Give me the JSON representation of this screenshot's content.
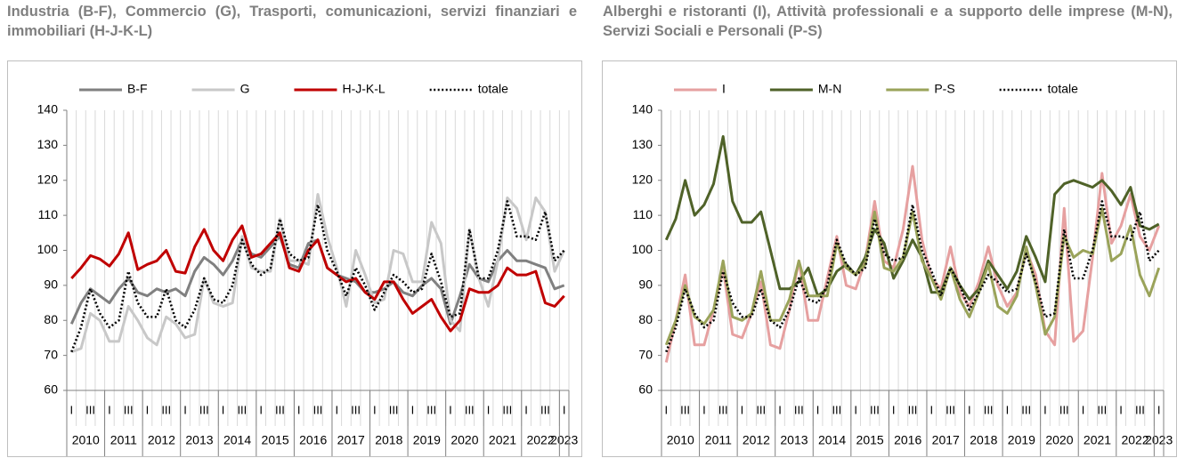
{
  "chart_data": [
    {
      "type": "line",
      "title": "Industria (B-F), Commercio (G), Trasporti, comunicazioni, servizi finanziari e immobiliari (H-J-K-L)",
      "categories": [
        "I",
        null,
        "III",
        null,
        "I",
        null,
        "III",
        null,
        "I",
        null,
        "III",
        null,
        "I",
        null,
        "III",
        null,
        "I",
        null,
        "III",
        null,
        "I",
        null,
        "III",
        null,
        "I",
        null,
        "III",
        null,
        "I",
        null,
        "III",
        null,
        "I",
        null,
        "III",
        null,
        "I",
        null,
        "III",
        null,
        "I",
        null,
        "III",
        null,
        "I",
        null,
        "III",
        null,
        "I",
        null,
        "III",
        null,
        "I"
      ],
      "years": [
        "2010",
        "2011",
        "2012",
        "2013",
        "2014",
        "2015",
        "2016",
        "2017",
        "2018",
        "2019",
        "2020",
        "2021",
        "2022",
        "2023"
      ],
      "ylim": [
        60,
        140
      ],
      "yticks": [
        60,
        70,
        80,
        90,
        100,
        110,
        120,
        130,
        140
      ],
      "grid": "x",
      "legend": "top",
      "series": [
        {
          "name": "B-F",
          "color": "#808080",
          "style": "solid",
          "values": [
            79,
            85,
            89,
            87,
            85,
            89,
            92,
            88,
            87,
            89,
            88,
            89,
            87,
            94,
            98,
            96,
            93,
            97,
            103,
            99,
            98,
            101,
            104,
            96,
            95,
            102,
            103,
            95,
            93,
            92,
            91,
            88,
            88,
            89,
            91,
            88,
            87,
            90,
            92,
            89,
            79,
            87,
            96,
            92,
            91,
            97,
            100,
            97,
            97,
            96,
            95,
            89,
            90
          ]
        },
        {
          "name": "G",
          "color": "#c8c8c8",
          "style": "solid",
          "values": [
            71,
            72,
            82,
            80,
            74,
            74,
            84,
            80,
            75,
            73,
            81,
            79,
            75,
            76,
            92,
            85,
            84,
            85,
            104,
            95,
            94,
            94,
            109,
            97,
            97,
            96,
            116,
            104,
            95,
            84,
            100,
            93,
            85,
            86,
            100,
            99,
            91,
            91,
            108,
            102,
            80,
            77,
            106,
            92,
            84,
            97,
            115,
            112,
            103,
            115,
            111,
            94,
            100
          ]
        },
        {
          "name": "H-J-K-L",
          "color": "#c00000",
          "style": "solid",
          "values": [
            92,
            95,
            98.5,
            97.5,
            95.5,
            99,
            105,
            94.5,
            96,
            97,
            100,
            94,
            93.5,
            101,
            106,
            100,
            97,
            103,
            107,
            98,
            99,
            102,
            105,
            95,
            94,
            100,
            103,
            95,
            93,
            91,
            92,
            88,
            86,
            91,
            91,
            86,
            82,
            84,
            86,
            81,
            77,
            80,
            89,
            88,
            88,
            90,
            95,
            93,
            93,
            94,
            85,
            84,
            87
          ]
        },
        {
          "name": "totale",
          "color": "#000000",
          "style": "dotted",
          "values": [
            71,
            78,
            89,
            82,
            78,
            80,
            94,
            85,
            81,
            81,
            89,
            80,
            78,
            83,
            92,
            86,
            85,
            90,
            103,
            96,
            93,
            95,
            109,
            99,
            97,
            98,
            113,
            100,
            94,
            87,
            95,
            90,
            83,
            88,
            93,
            91,
            88,
            89,
            99,
            91,
            81,
            82,
            106,
            92,
            92,
            100,
            114,
            104,
            104,
            103,
            111,
            97,
            100
          ]
        }
      ]
    },
    {
      "type": "line",
      "title": "Alberghi e ristoranti (I), Attività professionali e a supporto delle imprese (M-N), Servizi Sociali e Personali (P-S)",
      "categories": [
        "I",
        null,
        "III",
        null,
        "I",
        null,
        "III",
        null,
        "I",
        null,
        "III",
        null,
        "I",
        null,
        "III",
        null,
        "I",
        null,
        "III",
        null,
        "I",
        null,
        "III",
        null,
        "I",
        null,
        "III",
        null,
        "I",
        null,
        "III",
        null,
        "I",
        null,
        "III",
        null,
        "I",
        null,
        "III",
        null,
        "I",
        null,
        "III",
        null,
        "I",
        null,
        "III",
        null,
        "I",
        null,
        "III",
        null,
        "I"
      ],
      "years": [
        "2010",
        "2011",
        "2012",
        "2013",
        "2014",
        "2015",
        "2016",
        "2017",
        "2018",
        "2019",
        "2020",
        "2021",
        "2022",
        "2023"
      ],
      "ylim": [
        60,
        140
      ],
      "yticks": [
        60,
        70,
        80,
        90,
        100,
        110,
        120,
        130,
        140
      ],
      "grid": "x",
      "legend": "top",
      "series": [
        {
          "name": "I",
          "color": "#e6a0a0",
          "style": "solid",
          "values": [
            68,
            80,
            93,
            73,
            73,
            83,
            95,
            76,
            75,
            82,
            91,
            73,
            72,
            83,
            97,
            80,
            80,
            92,
            104,
            90,
            89,
            97,
            114,
            97,
            95,
            106,
            124,
            103,
            92,
            89,
            101,
            88,
            84,
            91,
            101,
            90,
            84,
            88,
            100,
            93,
            77,
            73,
            112,
            74,
            77,
            98,
            122,
            102,
            107,
            116,
            104,
            100,
            107
          ]
        },
        {
          "name": "M-N",
          "color": "#4f6228",
          "style": "solid",
          "values": [
            103,
            109,
            120,
            110,
            113,
            119,
            132.5,
            114,
            108,
            108,
            111,
            100,
            89,
            89,
            91,
            95,
            87,
            89,
            94,
            96,
            93,
            98,
            106,
            102,
            92,
            97,
            103,
            98,
            88,
            88,
            95,
            90,
            86,
            89,
            97,
            93,
            89,
            94,
            104,
            98,
            91,
            116,
            119,
            120,
            119,
            118,
            120,
            117,
            113,
            118,
            107,
            106,
            107.5
          ]
        },
        {
          "name": "P-S",
          "color": "#9aa35a",
          "style": "solid",
          "values": [
            73,
            80,
            90,
            81,
            79,
            83,
            97,
            81,
            80,
            82,
            94,
            80,
            80,
            86,
            97,
            87,
            87,
            87,
            102,
            95,
            93,
            96,
            111,
            95,
            94,
            98,
            111,
            97,
            92,
            86,
            95,
            86,
            81,
            88,
            96,
            84,
            82,
            87,
            101,
            90,
            76,
            81,
            104,
            98,
            100,
            99,
            112,
            97,
            99,
            107,
            93,
            87,
            95
          ]
        },
        {
          "name": "totale",
          "color": "#000000",
          "style": "dotted",
          "values": [
            71,
            78,
            89,
            82,
            78,
            80,
            94,
            85,
            81,
            81,
            89,
            80,
            78,
            83,
            92,
            86,
            85,
            90,
            103,
            96,
            93,
            95,
            109,
            99,
            97,
            98,
            113,
            100,
            94,
            87,
            95,
            90,
            83,
            88,
            93,
            91,
            88,
            89,
            99,
            91,
            81,
            82,
            106,
            92,
            92,
            100,
            114,
            104,
            104,
            103,
            111,
            97,
            100
          ]
        }
      ]
    }
  ]
}
